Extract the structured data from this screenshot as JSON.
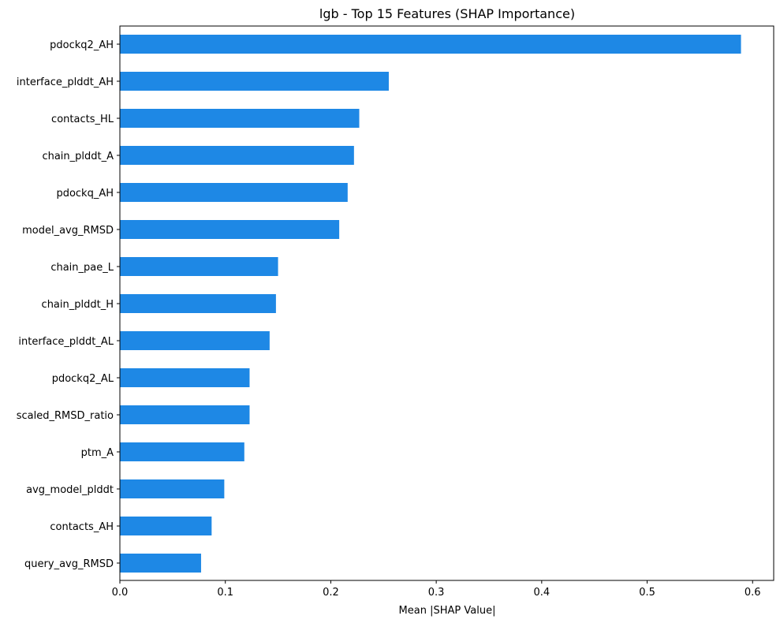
{
  "chart_data": {
    "type": "bar",
    "orientation": "horizontal",
    "title": "lgb - Top 15 Features (SHAP Importance)",
    "xlabel": "Mean |SHAP Value|",
    "ylabel": "",
    "xlim": [
      0,
      0.62
    ],
    "xticks": [
      0.0,
      0.1,
      0.2,
      0.3,
      0.4,
      0.5,
      0.6
    ],
    "xtick_labels": [
      "0.0",
      "0.1",
      "0.2",
      "0.3",
      "0.4",
      "0.5",
      "0.6"
    ],
    "grid": false,
    "bar_color": "#1e88e5",
    "categories": [
      "pdockq2_AH",
      "interface_plddt_AH",
      "contacts_HL",
      "chain_plddt_A",
      "pdockq_AH",
      "model_avg_RMSD",
      "chain_pae_L",
      "chain_plddt_H",
      "interface_plddt_AL",
      "pdockq2_AL",
      "scaled_RMSD_ratio",
      "ptm_A",
      "avg_model_plddt",
      "contacts_AH",
      "query_avg_RMSD"
    ],
    "values": [
      0.589,
      0.255,
      0.227,
      0.222,
      0.216,
      0.208,
      0.15,
      0.148,
      0.142,
      0.123,
      0.123,
      0.118,
      0.099,
      0.087,
      0.077
    ]
  }
}
